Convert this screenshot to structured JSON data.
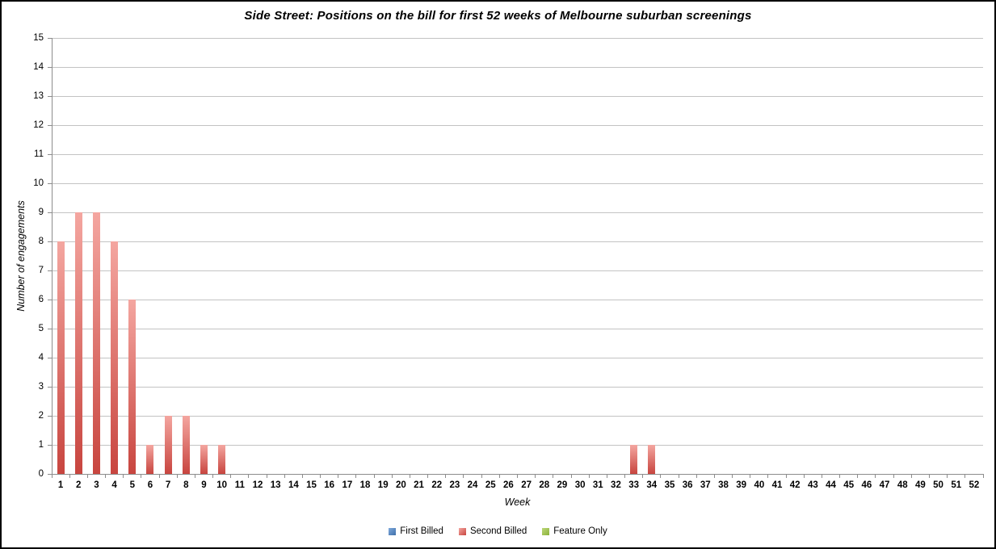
{
  "chart_data": {
    "type": "bar",
    "title": "Side Street: Positions on the bill for first 52 weeks of Melbourne suburban screenings",
    "xlabel": "Week",
    "ylabel": "Number of engagements",
    "ylim": [
      0,
      15
    ],
    "y_tick_step": 1,
    "y_ticks": [
      0,
      1,
      2,
      3,
      4,
      5,
      6,
      7,
      8,
      9,
      10,
      11,
      12,
      13,
      14,
      15
    ],
    "grid": "horizontal",
    "legend_position": "bottom",
    "categories": [
      1,
      2,
      3,
      4,
      5,
      6,
      7,
      8,
      9,
      10,
      11,
      12,
      13,
      14,
      15,
      16,
      17,
      18,
      19,
      20,
      21,
      22,
      23,
      24,
      25,
      26,
      27,
      28,
      29,
      30,
      31,
      32,
      33,
      34,
      35,
      36,
      37,
      38,
      39,
      40,
      41,
      42,
      43,
      44,
      45,
      46,
      47,
      48,
      49,
      50,
      51,
      52
    ],
    "series": [
      {
        "name": "First Billed",
        "color": "#4e8ac9",
        "gradient_top": "#7fa9dd",
        "gradient_bottom": "#3f6fa8",
        "values": [
          0,
          0,
          0,
          0,
          0,
          0,
          0,
          0,
          0,
          0,
          0,
          0,
          0,
          0,
          0,
          0,
          0,
          0,
          0,
          0,
          0,
          0,
          0,
          0,
          0,
          0,
          0,
          0,
          0,
          0,
          0,
          0,
          0,
          0,
          0,
          0,
          0,
          0,
          0,
          0,
          0,
          0,
          0,
          0,
          0,
          0,
          0,
          0,
          0,
          0,
          0,
          0
        ]
      },
      {
        "name": "Second Billed",
        "color": "#d8534b",
        "gradient_top": "#f4a6a0",
        "gradient_bottom": "#c8453f",
        "values": [
          8,
          9,
          9,
          8,
          6,
          1,
          2,
          2,
          1,
          1,
          0,
          0,
          0,
          0,
          0,
          0,
          0,
          0,
          0,
          0,
          0,
          0,
          0,
          0,
          0,
          0,
          0,
          0,
          0,
          0,
          0,
          0,
          1,
          1,
          0,
          0,
          0,
          0,
          0,
          0,
          0,
          0,
          0,
          0,
          0,
          0,
          0,
          0,
          0,
          0,
          0,
          0
        ]
      },
      {
        "name": "Feature Only",
        "color": "#9dc34c",
        "gradient_top": "#bcd77a",
        "gradient_bottom": "#8cb33a",
        "values": [
          0,
          0,
          0,
          0,
          0,
          0,
          0,
          0,
          0,
          0,
          0,
          0,
          0,
          0,
          0,
          0,
          0,
          0,
          0,
          0,
          0,
          0,
          0,
          0,
          0,
          0,
          0,
          0,
          0,
          0,
          0,
          0,
          0,
          0,
          0,
          0,
          0,
          0,
          0,
          0,
          0,
          0,
          0,
          0,
          0,
          0,
          0,
          0,
          0,
          0,
          0,
          0
        ]
      }
    ]
  },
  "style": {
    "gridline_color": "#c3c3c3",
    "axis_color": "#8c8c8c",
    "background_color": "#ffffff",
    "border_color": "#000000"
  }
}
